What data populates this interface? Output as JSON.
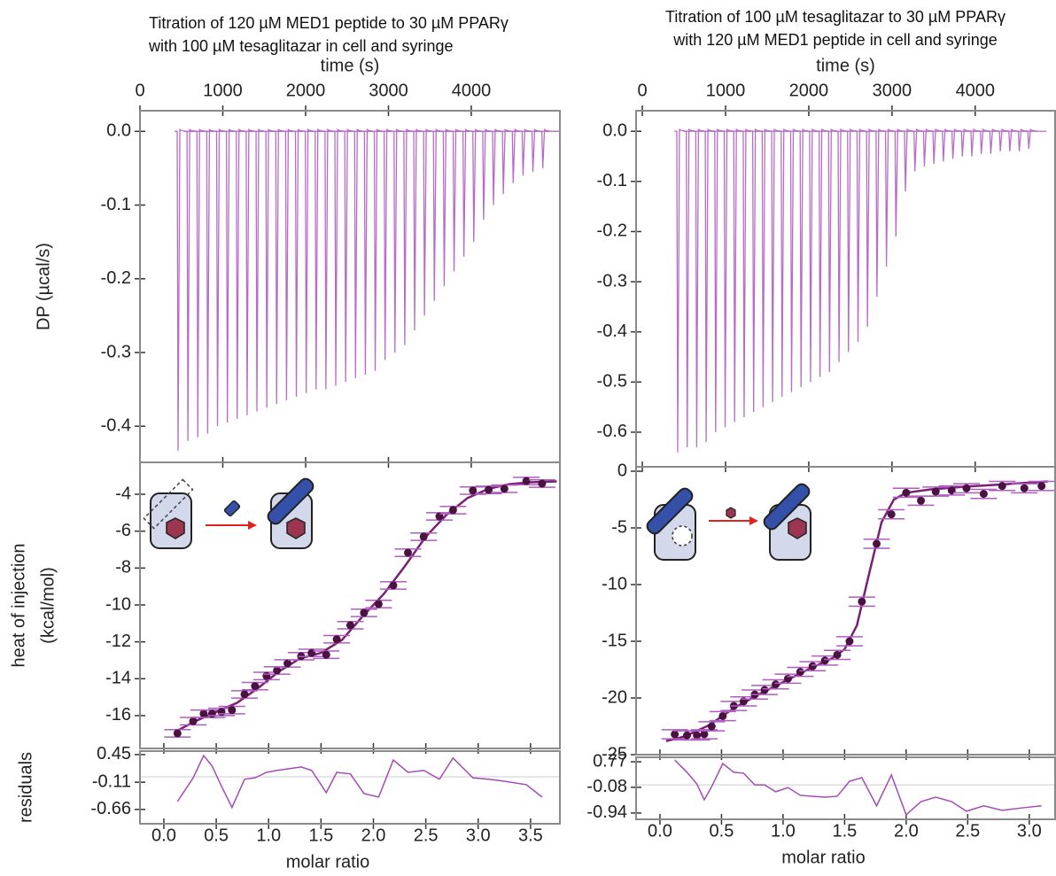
{
  "chart_data": [
    {
      "type": "spikes",
      "title": [
        "Titration of 120 µM MED1 peptide to 30 µM PPARγ",
        "with 100 µM  tesaglitazar in cell and syringe"
      ],
      "xlabel": "time (s)",
      "ylabel": "DP (µcal/s)",
      "xlim": [
        0,
        5070
      ],
      "xticks": [
        0,
        1000,
        2000,
        3000,
        4000
      ],
      "ylim": [
        -0.449,
        0.028
      ],
      "yticks": [
        {
          "value": 0,
          "label": "0.0"
        },
        -0.1,
        -0.2,
        -0.3,
        -0.4
      ],
      "color": "#b86cc8",
      "x": [
        460,
        579,
        698,
        817,
        936,
        1055,
        1174,
        1293,
        1412,
        1531,
        1650,
        1769,
        1888,
        2007,
        2126,
        2245,
        2364,
        2483,
        2602,
        2721,
        2840,
        2959,
        3078,
        3197,
        3316,
        3435,
        3554,
        3673,
        3792,
        3911,
        4030,
        4149,
        4268,
        4387,
        4506,
        4625,
        4744,
        4863
      ],
      "values": [
        -0.433,
        -0.42,
        -0.415,
        -0.41,
        -0.4,
        -0.395,
        -0.39,
        -0.385,
        -0.38,
        -0.375,
        -0.37,
        -0.365,
        -0.36,
        -0.355,
        -0.35,
        -0.35,
        -0.345,
        -0.34,
        -0.335,
        -0.33,
        -0.325,
        -0.31,
        -0.3,
        -0.29,
        -0.27,
        -0.25,
        -0.23,
        -0.21,
        -0.19,
        -0.17,
        -0.15,
        -0.12,
        -0.1,
        -0.085,
        -0.07,
        -0.06,
        -0.055,
        -0.05
      ]
    },
    {
      "type": "scatter",
      "ylabel": [
        "heat of injection",
        "(kcal/mol)"
      ],
      "ylim": [
        -17.78,
        -2.27
      ],
      "yticks": [
        -4,
        -6,
        -8,
        -10,
        -12,
        -14,
        -16
      ],
      "color": "#4a1240",
      "error_color": "#b05cc0",
      "x": [
        0.13,
        0.28,
        0.38,
        0.46,
        0.55,
        0.65,
        0.77,
        0.87,
        0.98,
        1.08,
        1.18,
        1.31,
        1.41,
        1.55,
        1.65,
        1.78,
        1.91,
        2.05,
        2.19,
        2.33,
        2.48,
        2.63,
        2.76,
        2.95,
        3.1,
        3.25,
        3.46,
        3.61
      ],
      "values": [
        -16.96,
        -16.3,
        -15.9,
        -15.9,
        -15.8,
        -15.7,
        -14.85,
        -14.4,
        -13.85,
        -13.55,
        -13.17,
        -12.78,
        -12.6,
        -12.7,
        -11.86,
        -11.1,
        -10.43,
        -9.95,
        -8.94,
        -7.17,
        -6.3,
        -5.2,
        -4.86,
        -3.8,
        -3.76,
        -3.7,
        -3.28,
        -3.42
      ],
      "errors": [
        0.2,
        0.2,
        0.2,
        0.2,
        0.2,
        0.2,
        0.2,
        0.2,
        0.2,
        0.2,
        0.2,
        0.2,
        0.2,
        0.2,
        0.2,
        0.2,
        0.2,
        0.2,
        0.2,
        0.2,
        0.2,
        0.2,
        0.2,
        0.2,
        0.2,
        0.2,
        0.2,
        0.2
      ],
      "fit": {
        "color": "#7a1f78",
        "x": [
          0.1,
          0.3,
          0.5,
          0.7,
          0.9,
          1.1,
          1.3,
          1.5,
          1.7,
          1.9,
          2.1,
          2.3,
          2.5,
          2.7,
          2.9,
          3.1,
          3.3,
          3.5,
          3.75
        ],
        "values": [
          -16.9,
          -16.3,
          -15.8,
          -15.3,
          -14.5,
          -13.6,
          -12.9,
          -12.6,
          -11.9,
          -10.6,
          -9.4,
          -7.9,
          -6.3,
          -5.1,
          -4.2,
          -3.7,
          -3.45,
          -3.35,
          -3.3
        ]
      }
    },
    {
      "type": "line",
      "ylabel": "residuals",
      "xlabel": "molar ratio",
      "xlim": [
        -0.228,
        3.78
      ],
      "xticks": [
        {
          "value": 0,
          "label": "0.0"
        },
        0.5,
        {
          "value": 1,
          "label": "1.0"
        },
        1.5,
        {
          "value": 2,
          "label": "2.0"
        },
        2.5,
        {
          "value": 3,
          "label": "3.0"
        },
        3.5
      ],
      "ylim": [
        -0.95,
        0.52
      ],
      "yticks": [
        0.45,
        -0.11,
        -0.66
      ],
      "color": "#a24cb4",
      "values": [
        -0.5,
        -0.02,
        0.43,
        0.22,
        -0.19,
        -0.62,
        -0.05,
        -0.02,
        0.09,
        0.13,
        0.16,
        0.2,
        0.13,
        -0.32,
        0.09,
        0.06,
        -0.34,
        -0.41,
        0.34,
        0.09,
        0.13,
        -0.05,
        0.38,
        -0.02,
        -0.05,
        -0.09,
        -0.16,
        -0.41
      ]
    },
    {
      "type": "spikes",
      "title": [
        "Titration of 100 µM tesaglitazar to 30 µM PPARγ",
        "with 120 µM  MED1 peptide in cell and syringe"
      ],
      "xlabel": "time (s)",
      "xlim": [
        -75,
        4960
      ],
      "xticks": [
        0,
        1000,
        2000,
        3000,
        4000
      ],
      "ylim": [
        -0.669,
        0.041
      ],
      "yticks": [
        {
          "value": 0,
          "label": "0.0"
        },
        -0.1,
        -0.2,
        -0.3,
        -0.4,
        -0.5,
        -0.6
      ],
      "color": "#b86cc8",
      "x": [
        425,
        539,
        653,
        767,
        881,
        995,
        1109,
        1223,
        1337,
        1451,
        1565,
        1679,
        1793,
        1907,
        2021,
        2135,
        2249,
        2363,
        2477,
        2591,
        2705,
        2819,
        2933,
        3047,
        3161,
        3275,
        3389,
        3503,
        3617,
        3731,
        3845,
        3959,
        4073,
        4187,
        4301,
        4415,
        4529,
        4643
      ],
      "values": [
        -0.64,
        -0.63,
        -0.63,
        -0.62,
        -0.6,
        -0.59,
        -0.58,
        -0.57,
        -0.56,
        -0.55,
        -0.54,
        -0.53,
        -0.52,
        -0.51,
        -0.5,
        -0.49,
        -0.48,
        -0.46,
        -0.44,
        -0.42,
        -0.39,
        -0.33,
        -0.27,
        -0.21,
        -0.12,
        -0.08,
        -0.07,
        -0.065,
        -0.06,
        -0.055,
        -0.05,
        -0.05,
        -0.045,
        -0.045,
        -0.04,
        -0.04,
        -0.04,
        -0.035
      ]
    },
    {
      "type": "scatter",
      "ylim": [
        -25,
        0.39
      ],
      "yticks": [
        0,
        -5,
        -10,
        -15,
        -20,
        -25
      ],
      "color": "#4a1240",
      "error_color": "#b05cc0",
      "x": [
        0.12,
        0.22,
        0.3,
        0.36,
        0.42,
        0.51,
        0.6,
        0.68,
        0.77,
        0.85,
        0.94,
        1.04,
        1.14,
        1.24,
        1.34,
        1.44,
        1.54,
        1.64,
        1.76,
        1.88,
        2.0,
        2.12,
        2.24,
        2.37,
        2.49,
        2.63,
        2.78,
        2.96,
        3.1
      ],
      "values": [
        -23.2,
        -23.3,
        -23.3,
        -23.2,
        -22.5,
        -21.6,
        -20.7,
        -20.3,
        -19.7,
        -19.3,
        -18.8,
        -18.3,
        -17.7,
        -17.2,
        -16.7,
        -16.2,
        -15.0,
        -11.5,
        -6.4,
        -3.8,
        -1.9,
        -2.6,
        -1.8,
        -1.7,
        -1.5,
        -2.0,
        -1.3,
        -1.5,
        -1.3
      ],
      "errors": [
        0.4,
        0.4,
        0.4,
        0.4,
        0.4,
        0.4,
        0.4,
        0.4,
        0.4,
        0.4,
        0.4,
        0.4,
        0.4,
        0.4,
        0.4,
        0.4,
        0.4,
        0.4,
        0.4,
        0.4,
        0.4,
        0.4,
        0.4,
        0.4,
        0.4,
        0.4,
        0.4,
        0.4,
        0.4
      ],
      "fit": {
        "color": "#7a1f78",
        "x": [
          0.05,
          0.2,
          0.4,
          0.6,
          0.8,
          1.0,
          1.2,
          1.4,
          1.5,
          1.6,
          1.7,
          1.8,
          1.9,
          2.0,
          2.2,
          2.5,
          2.8,
          3.15
        ],
        "values": [
          -23.8,
          -23.4,
          -22.4,
          -20.9,
          -19.7,
          -18.6,
          -17.5,
          -16.5,
          -15.7,
          -13.6,
          -9.0,
          -4.5,
          -2.5,
          -1.9,
          -1.6,
          -1.35,
          -1.15,
          -0.9
        ]
      }
    },
    {
      "type": "line",
      "xlabel": "molar ratio",
      "xlim": [
        -0.194,
        3.21
      ],
      "xticks": [
        {
          "value": 0,
          "label": "0.0"
        },
        0.5,
        {
          "value": 1,
          "label": "1.0"
        },
        1.5,
        {
          "value": 2,
          "label": "2.0"
        },
        2.5,
        {
          "value": 3,
          "label": "3.0"
        }
      ],
      "ylim": [
        -1.15,
        0.92
      ],
      "yticks": [
        0.77,
        -0.08,
        -0.94
      ],
      "color": "#a24cb4",
      "values": [
        0.83,
        0.42,
        0.03,
        -0.5,
        -0.06,
        0.71,
        0.42,
        0.39,
        0.0,
        0.0,
        -0.23,
        -0.09,
        -0.35,
        -0.38,
        -0.41,
        -0.38,
        0.12,
        0.24,
        -0.7,
        0.33,
        -1.0,
        -0.56,
        -0.41,
        -0.56,
        -0.88,
        -0.7,
        -0.85,
        -0.76,
        -0.7
      ]
    }
  ]
}
